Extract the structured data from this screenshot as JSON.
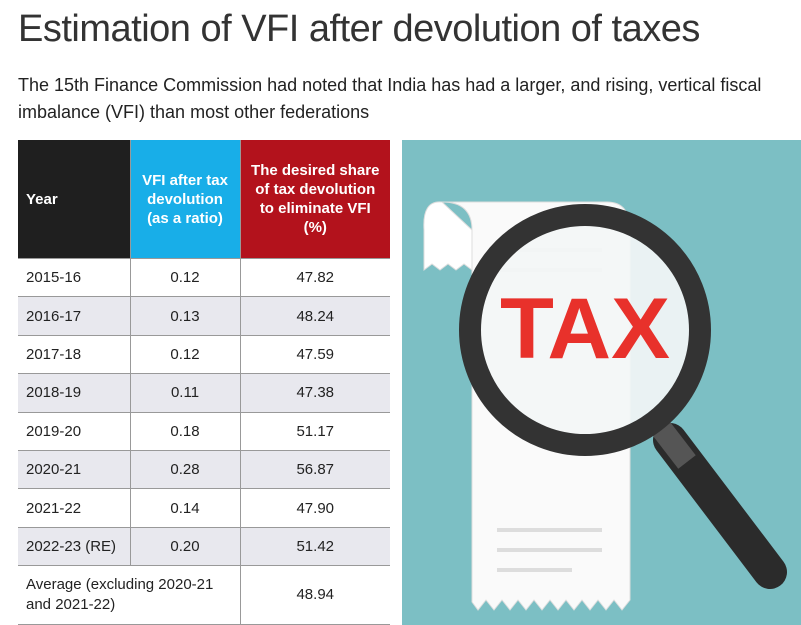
{
  "header": {
    "title": "Estimation of VFI after devolution of taxes",
    "subtitle": "The 15th Finance Commission had noted that India has had a larger, and rising, vertical fiscal imbalance (VFI) than most other federations"
  },
  "table": {
    "columns": [
      "Year",
      "VFI after tax devolution (as a ratio)",
      "The desired share of tax devolution to eliminate VFI (%)"
    ],
    "rows": [
      [
        "2015-16",
        "0.12",
        "47.82"
      ],
      [
        "2016-17",
        "0.13",
        "48.24"
      ],
      [
        "2017-18",
        "0.12",
        "47.59"
      ],
      [
        "2018-19",
        "0.11",
        "47.38"
      ],
      [
        "2019-20",
        "0.18",
        "51.17"
      ],
      [
        "2020-21",
        "0.28",
        "56.87"
      ],
      [
        "2021-22",
        "0.14",
        "47.90"
      ],
      [
        "2022-23 (RE)",
        "0.20",
        "51.42"
      ]
    ],
    "footer": [
      "Average (excluding 2020-21 and 2021-22)",
      "48.94"
    ]
  },
  "illustration": {
    "text": "TAX"
  }
}
